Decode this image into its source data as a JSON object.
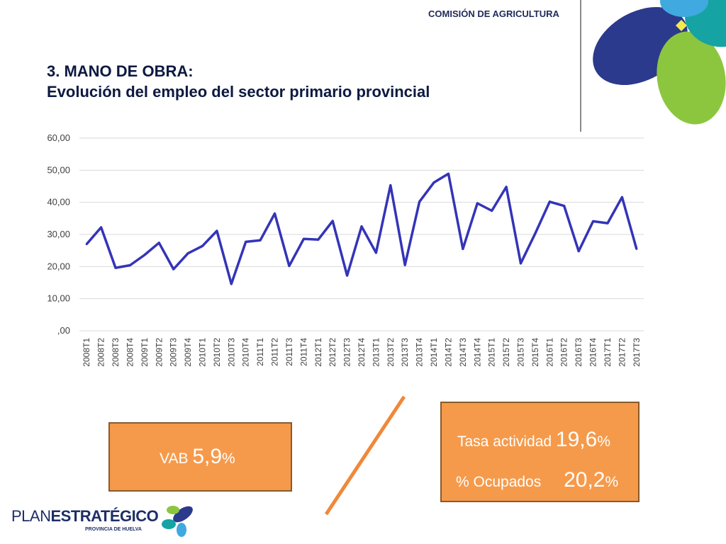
{
  "header": {
    "commission": "COMISIÓN DE AGRICULTURA"
  },
  "title": {
    "line1": "3. MANO DE OBRA:",
    "line2": "Evolución del empleo del sector primario provincial"
  },
  "chart_data": {
    "type": "line",
    "categories": [
      "2008T1",
      "2008T2",
      "2008T3",
      "2008T4",
      "2009T1",
      "2009T2",
      "2009T3",
      "2009T4",
      "2010T1",
      "2010T2",
      "2010T3",
      "2010T4",
      "2011T1",
      "2011T2",
      "2011T3",
      "2011T4",
      "2012T1",
      "2012T2",
      "2012T3",
      "2012T4",
      "2013T1",
      "2013T2",
      "2013T3",
      "2013T4",
      "2014T1",
      "2014T2",
      "2014T3",
      "2014T4",
      "2015T1",
      "2015T2",
      "2015T3",
      "2015T4",
      "2016T1",
      "2016T2",
      "2016T3",
      "2016T4",
      "2017T1",
      "2017T2",
      "2017T3"
    ],
    "series": [
      {
        "values": [
          27.0,
          32.2,
          19.6,
          20.4,
          23.6,
          27.4,
          19.2,
          24.1,
          26.4,
          31.1,
          14.6,
          27.7,
          28.2,
          36.5,
          20.2,
          28.6,
          28.4,
          34.2,
          17.2,
          32.5,
          24.3,
          45.3,
          20.5,
          40.2,
          46.2,
          48.9,
          25.5,
          39.7,
          37.4,
          44.8,
          21.0,
          30.3,
          40.2,
          38.9,
          24.8,
          34.1,
          33.5,
          41.6,
          25.5
        ]
      }
    ],
    "yticks": [
      ",00",
      "10,00",
      "20,00",
      "30,00",
      "40,00",
      "50,00",
      "60,00"
    ],
    "ylim": [
      0,
      60
    ],
    "grid": true,
    "legend": "none",
    "colors": {
      "line": "#3434b8",
      "grid": "#d9d9d9"
    }
  },
  "boxes": {
    "vab": {
      "label": "VAB",
      "value": "5,9",
      "unit": "%"
    },
    "tasa": {
      "row1_label": "Tasa actividad",
      "row1_value": "19,6",
      "row1_unit": "%",
      "row2_label": "% Ocupados",
      "row2_value": "20,2",
      "row2_unit": "%"
    }
  },
  "logo": {
    "plan": "PLAN",
    "estrategico": "ESTRATÉGICO",
    "subtitle": "PROVINCIA DE HUELVA"
  },
  "colors": {
    "box_fill": "#f59a4b",
    "title": "#0c1940",
    "petal_navy": "#2b3a8c",
    "petal_green": "#8cc63f",
    "petal_teal": "#15a3a3",
    "petal_blue": "#3fa9e0"
  }
}
